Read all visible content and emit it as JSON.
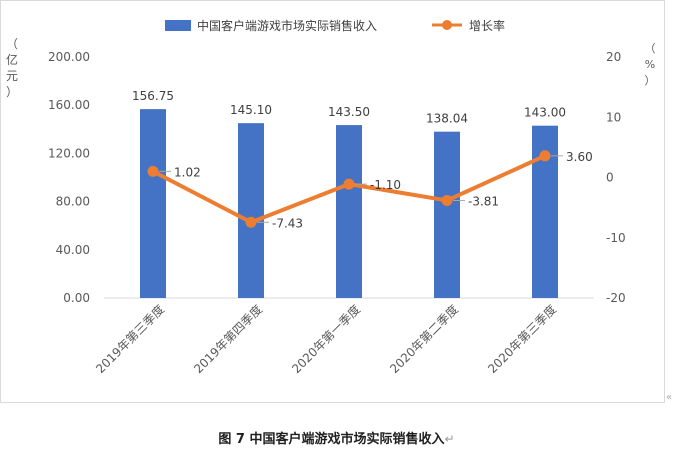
{
  "chart_data": {
    "type": "bar",
    "categories": [
      "2019年第三季度",
      "2019年第四季度",
      "2020年第一季度",
      "2020年第二季度",
      "2020年第三季度"
    ],
    "series": [
      {
        "name": "中国客户端游戏市场实际销售收入",
        "type": "bar",
        "axis": "left",
        "color": "#4472c4",
        "values": [
          156.75,
          145.1,
          143.5,
          138.04,
          143.0
        ],
        "value_labels": [
          "156.75",
          "145.10",
          "143.50",
          "138.04",
          "143.00"
        ]
      },
      {
        "name": "增长率",
        "type": "line",
        "axis": "right",
        "color": "#ed7d31",
        "values": [
          1.02,
          -7.43,
          -1.1,
          -3.81,
          3.6
        ],
        "value_labels": [
          "1.02",
          "-7.43",
          "-1.10",
          "-3.81",
          "3.60"
        ]
      }
    ],
    "y_left": {
      "label": "（亿元）",
      "ylim": [
        0,
        200
      ],
      "ticks": [
        "0.00",
        "40.00",
        "80.00",
        "120.00",
        "160.00",
        "200.00"
      ]
    },
    "y_right": {
      "label": "（%）",
      "ylim": [
        -20,
        20
      ],
      "ticks": [
        "-20",
        "-10",
        "0",
        "10",
        "20"
      ]
    },
    "legend_position": "top",
    "grid": false
  },
  "caption": {
    "text": "图 7  中国客户端游戏市场实际销售收入",
    "mark": "↵"
  },
  "corner_mark": "«"
}
